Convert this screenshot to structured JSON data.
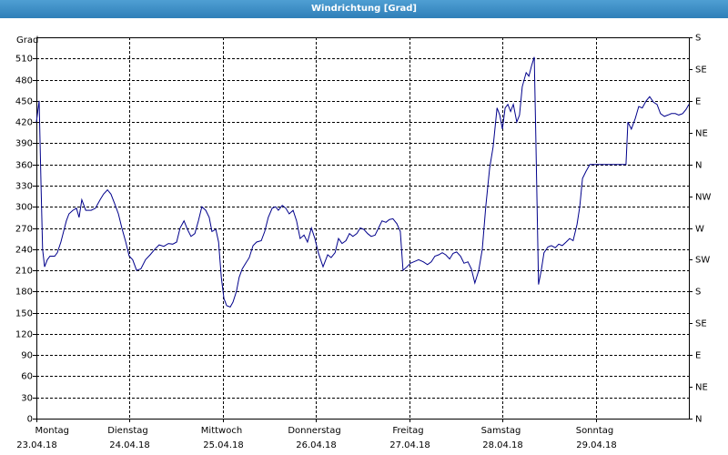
{
  "chart_data": {
    "type": "line",
    "title": "Windrichtung [Grad]",
    "y_label": "Grad",
    "xlim": [
      0,
      168
    ],
    "xticks": [
      0,
      24,
      48,
      72,
      96,
      120,
      144
    ],
    "xtick_days": [
      "Montag",
      "Dienstag",
      "Mittwoch",
      "Donnerstag",
      "Freitag",
      "Samstag",
      "Sonntag"
    ],
    "xtick_dates": [
      "23.04.18",
      "24.04.18",
      "25.04.18",
      "26.04.18",
      "27.04.18",
      "28.04.18",
      "29.04.18"
    ],
    "ylim": [
      0,
      540
    ],
    "yticks": [
      0,
      30,
      60,
      90,
      120,
      150,
      180,
      210,
      240,
      270,
      300,
      330,
      360,
      390,
      420,
      450,
      480,
      510
    ],
    "y2lim": [
      0,
      540
    ],
    "y2ticks": [
      {
        "value": 0,
        "label": "N"
      },
      {
        "value": 45,
        "label": "NE"
      },
      {
        "value": 90,
        "label": "E"
      },
      {
        "value": 135,
        "label": "SE"
      },
      {
        "value": 180,
        "label": "S"
      },
      {
        "value": 225,
        "label": "SW"
      },
      {
        "value": 270,
        "label": "W"
      },
      {
        "value": 315,
        "label": "NW"
      },
      {
        "value": 360,
        "label": "N"
      },
      {
        "value": 405,
        "label": "NE"
      },
      {
        "value": 450,
        "label": "E"
      },
      {
        "value": 495,
        "label": "SE"
      },
      {
        "value": 540,
        "label": "S"
      }
    ],
    "grid": true,
    "series": [
      {
        "color": "#00008b",
        "x": [
          0,
          0.7,
          1.2,
          1.6,
          2.1,
          2.8,
          3.5,
          4.7,
          5.4,
          6.3,
          7.0,
          7.7,
          8.4,
          9.4,
          10.3,
          11.0,
          11.7,
          12.7,
          14.1,
          15.2,
          16.4,
          17.3,
          18.3,
          19.2,
          20.1,
          21.1,
          22.0,
          23.0,
          23.9,
          24.8,
          25.8,
          26.9,
          28.1,
          29.3,
          30.5,
          31.6,
          32.8,
          34.0,
          35.1,
          36.1,
          37.0,
          38.0,
          38.9,
          39.8,
          40.8,
          41.7,
          42.6,
          43.6,
          44.5,
          45.2,
          46.2,
          46.9,
          47.6,
          48.3,
          49.0,
          49.9,
          50.6,
          51.5,
          52.2,
          53.0,
          53.9,
          54.8,
          55.8,
          56.7,
          57.9,
          58.8,
          59.7,
          60.7,
          61.6,
          62.3,
          63.3,
          64.2,
          65.1,
          66.1,
          67.0,
          67.9,
          68.9,
          69.8,
          70.8,
          71.7,
          72.6,
          73.8,
          75.0,
          75.9,
          76.9,
          77.8,
          78.7,
          79.7,
          80.6,
          81.5,
          82.5,
          83.4,
          84.3,
          85.3,
          86.2,
          87.2,
          88.1,
          89.0,
          90.0,
          90.9,
          91.8,
          92.8,
          93.7,
          94.4,
          95.4,
          96.3,
          97.2,
          98.4,
          99.6,
          100.7,
          101.7,
          102.6,
          103.6,
          104.5,
          105.4,
          106.4,
          107.3,
          108.2,
          109.2,
          110.1,
          111.1,
          112.0,
          112.9,
          113.9,
          114.8,
          115.7,
          116.7,
          117.6,
          118.6,
          119.3,
          120.0,
          120.7,
          121.4,
          122.1,
          122.8,
          123.7,
          124.4,
          125.1,
          126.1,
          126.8,
          127.5,
          128.2,
          128.6,
          129.3,
          130.0,
          130.7,
          131.7,
          132.6,
          133.6,
          134.5,
          135.4,
          136.4,
          137.3,
          138.2,
          139.2,
          139.9,
          140.6,
          141.5,
          142.5,
          143.4,
          151.8,
          152.3,
          153.2,
          154.2,
          155.1,
          156.0,
          157.0,
          157.9,
          158.9,
          159.8,
          160.7,
          161.7,
          162.6,
          163.5,
          164.5,
          165.4,
          166.4,
          167.3,
          168.0
        ],
        "values": [
          420,
          450,
          330,
          240,
          215,
          225,
          230,
          230,
          235,
          250,
          265,
          280,
          290,
          295,
          298,
          285,
          310,
          295,
          295,
          298,
          310,
          318,
          324,
          318,
          305,
          290,
          270,
          250,
          230,
          225,
          210,
          212,
          225,
          232,
          240,
          246,
          244,
          248,
          247,
          250,
          270,
          280,
          268,
          258,
          262,
          280,
          300,
          295,
          285,
          265,
          268,
          250,
          200,
          170,
          160,
          158,
          165,
          180,
          200,
          212,
          220,
          228,
          245,
          250,
          252,
          265,
          285,
          298,
          300,
          295,
          302,
          298,
          290,
          295,
          280,
          255,
          260,
          250,
          270,
          255,
          235,
          215,
          232,
          228,
          235,
          255,
          248,
          252,
          262,
          258,
          262,
          270,
          268,
          262,
          258,
          260,
          270,
          280,
          278,
          282,
          283,
          276,
          265,
          210,
          215,
          220,
          222,
          225,
          222,
          218,
          222,
          230,
          232,
          235,
          232,
          226,
          234,
          236,
          230,
          220,
          222,
          212,
          192,
          210,
          240,
          300,
          355,
          385,
          440,
          430,
          410,
          440,
          445,
          435,
          445,
          420,
          430,
          470,
          490,
          485,
          500,
          512,
          400,
          190,
          210,
          235,
          243,
          245,
          242,
          247,
          245,
          250,
          255,
          252,
          275,
          300,
          340,
          350,
          360,
          360,
          360,
          420,
          410,
          425,
          442,
          440,
          450,
          456,
          448,
          445,
          432,
          428,
          430,
          432,
          432,
          430,
          432,
          438,
          445
        ]
      }
    ]
  }
}
